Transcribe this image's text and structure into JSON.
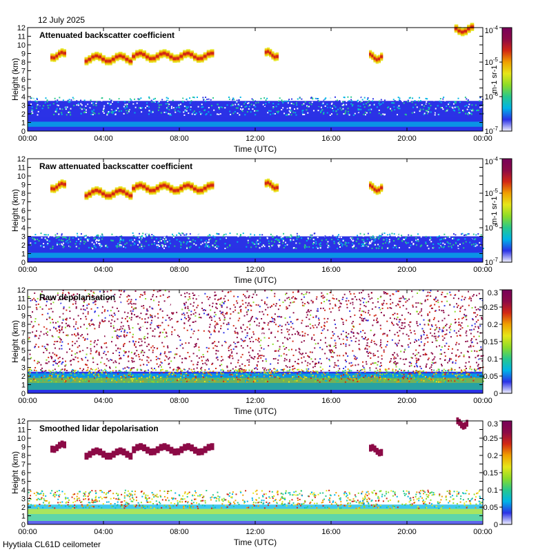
{
  "date": "12 July 2025",
  "footer": "Hyytiala CL61D ceilometer",
  "colors": {
    "jet": [
      "#f2f2ff",
      "#2b32e6",
      "#00b4e6",
      "#28c88c",
      "#8cdc28",
      "#e6e619",
      "#f0a000",
      "#d22814",
      "#8c0a46",
      "#78005a"
    ]
  },
  "x_axis": {
    "label": "Time (UTC)",
    "range": [
      0,
      24
    ],
    "ticks": [
      0,
      4,
      8,
      12,
      16,
      20,
      24
    ],
    "tick_labels": [
      "00:00",
      "04:00",
      "08:00",
      "12:00",
      "16:00",
      "20:00",
      "00:00"
    ]
  },
  "y_axis": {
    "label": "Height (km)",
    "range": [
      0,
      12
    ],
    "ticks": [
      0,
      1,
      2,
      3,
      4,
      5,
      6,
      7,
      8,
      9,
      10,
      11,
      12
    ],
    "tick_labels": [
      "0",
      "1",
      "2",
      "3",
      "4",
      "5",
      "6",
      "7",
      "8",
      "9",
      "10",
      "11",
      "12"
    ]
  },
  "chart_data": [
    {
      "type": "heatmap",
      "title": "Attenuated backscatter coefficient",
      "colorbar": {
        "scale": "log",
        "range": [
          1e-07,
          0.0001
        ],
        "unit": "m-1 sr-1",
        "tick_labels": [
          "10-7",
          "10-6",
          "10-5",
          "10-4"
        ],
        "ticks": [
          1e-07,
          1e-06,
          1e-05,
          0.0001
        ]
      },
      "features": [
        {
          "kind": "boundary-layer",
          "start": 0,
          "end": 24,
          "top_km": 3.5
        },
        {
          "kind": "cloud",
          "start": 1.2,
          "end": 2.0,
          "height_km": 8.8
        },
        {
          "kind": "cloud",
          "start": 3.0,
          "end": 5.5,
          "height_km": 8.4
        },
        {
          "kind": "cloud",
          "start": 5.5,
          "end": 9.8,
          "height_km": 8.7
        },
        {
          "kind": "cloud",
          "start": 12.5,
          "end": 13.2,
          "height_km": 8.9
        },
        {
          "kind": "cloud",
          "start": 18.0,
          "end": 18.7,
          "height_km": 8.6
        },
        {
          "kind": "cloud",
          "start": 22.5,
          "end": 23.5,
          "height_km": 11.8
        }
      ]
    },
    {
      "type": "heatmap",
      "title": "Raw attenuated backscatter coefficient",
      "colorbar": {
        "scale": "log",
        "range": [
          1e-07,
          0.0001
        ],
        "unit": "m-1 sr-1",
        "tick_labels": [
          "10-7",
          "10-6",
          "10-5",
          "10-4"
        ],
        "ticks": [
          1e-07,
          1e-06,
          1e-05,
          0.0001
        ]
      },
      "features": [
        {
          "kind": "boundary-layer",
          "start": 0,
          "end": 24,
          "top_km": 3.0
        },
        {
          "kind": "cloud",
          "start": 1.2,
          "end": 2.0,
          "height_km": 8.8
        },
        {
          "kind": "cloud",
          "start": 3.0,
          "end": 5.5,
          "height_km": 8.0
        },
        {
          "kind": "cloud",
          "start": 5.5,
          "end": 9.8,
          "height_km": 8.6
        },
        {
          "kind": "cloud",
          "start": 12.5,
          "end": 13.2,
          "height_km": 8.9
        },
        {
          "kind": "cloud",
          "start": 18.0,
          "end": 18.7,
          "height_km": 8.6
        }
      ]
    },
    {
      "type": "heatmap",
      "title": "Raw depolarisation",
      "colorbar": {
        "scale": "linear",
        "range": [
          0,
          0.3
        ],
        "tick_labels": [
          "0",
          "0.05",
          "0.1",
          "0.15",
          "0.2",
          "0.25",
          "0.3"
        ],
        "ticks": [
          0,
          0.05,
          0.1,
          0.15,
          0.2,
          0.25,
          0.3
        ]
      },
      "features": [
        {
          "kind": "noise",
          "start": 0,
          "end": 24,
          "from_km": 2.0,
          "to_km": 12.0
        },
        {
          "kind": "boundary-layer",
          "start": 0,
          "end": 24,
          "top_km": 2.5
        }
      ]
    },
    {
      "type": "heatmap",
      "title": "Smoothed lidar depolarisation",
      "colorbar": {
        "scale": "linear",
        "range": [
          0,
          0.3
        ],
        "tick_labels": [
          "0",
          "0.05",
          "0.1",
          "0.15",
          "0.2",
          "0.25",
          "0.3"
        ],
        "ticks": [
          0,
          0.05,
          0.1,
          0.15,
          0.2,
          0.25,
          0.3
        ]
      },
      "features": [
        {
          "kind": "boundary-layer",
          "start": 0,
          "end": 24,
          "top_km": 3.5
        },
        {
          "kind": "cloud",
          "start": 1.2,
          "end": 2.0,
          "height_km": 9.0
        },
        {
          "kind": "cloud",
          "start": 3.0,
          "end": 5.5,
          "height_km": 8.2
        },
        {
          "kind": "cloud",
          "start": 5.5,
          "end": 9.8,
          "height_km": 8.7
        },
        {
          "kind": "cloud",
          "start": 18.0,
          "end": 18.7,
          "height_km": 8.6
        },
        {
          "kind": "cloud",
          "start": 22.6,
          "end": 23.2,
          "height_km": 11.7
        }
      ]
    }
  ]
}
